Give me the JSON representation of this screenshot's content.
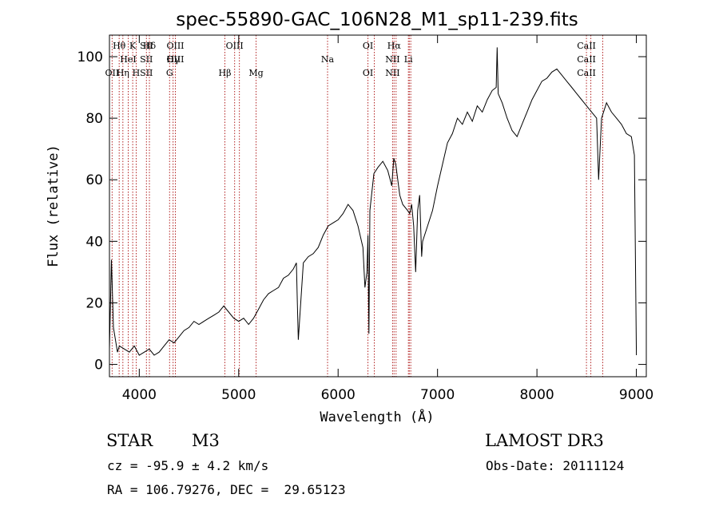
{
  "chart_data": {
    "type": "line",
    "title": "spec-55890-GAC_106N28_M1_sp11-239.fits",
    "xlabel": "Wavelength (Å)",
    "ylabel": "Flux (relative)",
    "xlim": [
      3700,
      9100
    ],
    "ylim": [
      -4,
      107
    ],
    "xticks": [
      4000,
      5000,
      6000,
      7000,
      8000,
      9000
    ],
    "yticks": [
      0,
      20,
      40,
      60,
      80,
      100
    ],
    "series": [
      {
        "name": "flux",
        "x": [
          3700,
          3720,
          3740,
          3760,
          3780,
          3800,
          3850,
          3900,
          3950,
          4000,
          4050,
          4100,
          4150,
          4200,
          4250,
          4300,
          4350,
          4400,
          4450,
          4500,
          4550,
          4600,
          4650,
          4700,
          4750,
          4800,
          4850,
          4900,
          4950,
          5000,
          5050,
          5100,
          5150,
          5200,
          5250,
          5300,
          5350,
          5400,
          5450,
          5500,
          5550,
          5580,
          5590,
          5600,
          5650,
          5700,
          5750,
          5800,
          5850,
          5900,
          5950,
          6000,
          6050,
          6100,
          6150,
          6200,
          6250,
          6270,
          6290,
          6300,
          6310,
          6320,
          6340,
          6360,
          6400,
          6450,
          6500,
          6540,
          6560,
          6580,
          6600,
          6620,
          6650,
          6700,
          6720,
          6740,
          6760,
          6780,
          6800,
          6820,
          6840,
          6850,
          6900,
          6950,
          7000,
          7050,
          7100,
          7150,
          7200,
          7250,
          7300,
          7350,
          7400,
          7450,
          7500,
          7550,
          7590,
          7600,
          7610,
          7650,
          7700,
          7750,
          7800,
          7850,
          7900,
          7950,
          8000,
          8050,
          8100,
          8150,
          8200,
          8250,
          8300,
          8350,
          8400,
          8450,
          8500,
          8550,
          8600,
          8620,
          8650,
          8700,
          8750,
          8800,
          8850,
          8900,
          8950,
          8980,
          9000
        ],
        "values": [
          5,
          34,
          12,
          8,
          4,
          6,
          5,
          4,
          6,
          3,
          4,
          5,
          3,
          4,
          6,
          8,
          7,
          9,
          11,
          12,
          14,
          13,
          14,
          15,
          16,
          17,
          19,
          17,
          15,
          14,
          15,
          13,
          15,
          18,
          21,
          23,
          24,
          25,
          28,
          29,
          31,
          33,
          20,
          8,
          33,
          35,
          36,
          38,
          42,
          45,
          46,
          47,
          49,
          52,
          50,
          45,
          38,
          25,
          30,
          42,
          10,
          50,
          56,
          62,
          64,
          66,
          63,
          58,
          67,
          65,
          60,
          55,
          52,
          50,
          49,
          52,
          45,
          30,
          50,
          55,
          35,
          40,
          45,
          50,
          58,
          65,
          72,
          75,
          80,
          78,
          82,
          79,
          84,
          82,
          86,
          89,
          90,
          103,
          88,
          85,
          80,
          76,
          74,
          78,
          82,
          86,
          89,
          92,
          93,
          95,
          96,
          94,
          92,
          90,
          88,
          86,
          84,
          82,
          80,
          60,
          80,
          85,
          82,
          80,
          78,
          75,
          74,
          68,
          3
        ]
      }
    ],
    "lines": [
      {
        "name": "Hθ",
        "x": 3798
      },
      {
        "name": "OII",
        "x": 3727
      },
      {
        "name": "Hη",
        "x": 3835
      },
      {
        "name": "HeI",
        "x": 3889
      },
      {
        "name": "K",
        "x": 3934
      },
      {
        "name": "H",
        "x": 3969
      },
      {
        "name": "SII",
        "x": 4072
      },
      {
        "name": "Hδ",
        "x": 4102
      },
      {
        "name": "OIII",
        "x": 4363
      },
      {
        "name": "Hγ",
        "x": 4340
      },
      {
        "name": "G",
        "x": 4305
      },
      {
        "name": "Hβ",
        "x": 4861
      },
      {
        "name": "OIII",
        "x": 4959
      },
      {
        "name": "OIII",
        "x": 5007
      },
      {
        "name": "Mg",
        "x": 5175
      },
      {
        "name": "Na",
        "x": 5894
      },
      {
        "name": "OI",
        "x": 6300
      },
      {
        "name": "OI",
        "x": 6364
      },
      {
        "name": "NII",
        "x": 6548
      },
      {
        "name": "Hα",
        "x": 6563
      },
      {
        "name": "NII",
        "x": 6583
      },
      {
        "name": "Li",
        "x": 6707
      },
      {
        "name": "SII",
        "x": 6716
      },
      {
        "name": "SII",
        "x": 6731
      },
      {
        "name": "CaII",
        "x": 8498
      },
      {
        "name": "CaII",
        "x": 8542
      },
      {
        "name": "CaII",
        "x": 8662
      }
    ],
    "line_label_rows": [
      [
        "Hθ",
        "K",
        "Hδ",
        "OIII",
        "OIII",
        "OI",
        "Hα",
        "SII",
        "CaII"
      ],
      [
        "HeI",
        "SII",
        "Hγ",
        "OIII",
        "Na",
        "NII",
        "Li",
        "CaII"
      ],
      [
        "OII",
        "Hη",
        "H",
        "G",
        "Hβ",
        "Mg",
        "OI",
        "NII",
        "SII",
        "CaII"
      ]
    ]
  },
  "info": {
    "class_label": "STAR",
    "subclass": "M3",
    "survey": "LAMOST DR3",
    "cz": "cz = -95.9 ± 4.2 km/s",
    "obs_date": "Obs-Date: 20111124",
    "coords": "RA = 106.79276, DEC =  29.65123"
  },
  "colors": {
    "spectrum": "#000000",
    "line_markers": "#b22222"
  }
}
